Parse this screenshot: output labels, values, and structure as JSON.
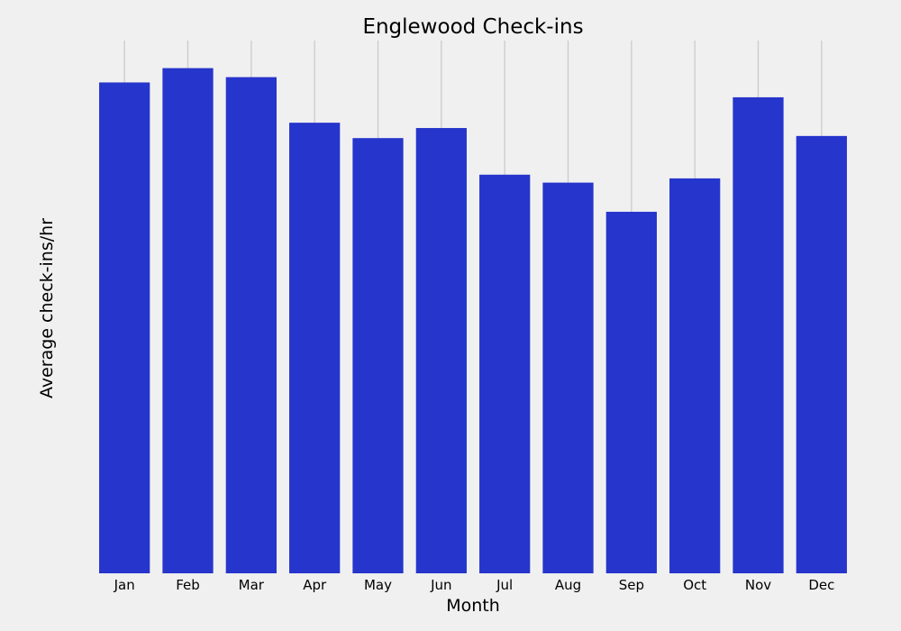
{
  "chart_data": {
    "type": "bar",
    "title": "Englewood Check-ins",
    "xlabel": "Month",
    "ylabel": "Average check-ins/hr",
    "categories": [
      "Jan",
      "Feb",
      "Mar",
      "Apr",
      "May",
      "Jun",
      "Jul",
      "Aug",
      "Sep",
      "Oct",
      "Nov",
      "Dec"
    ],
    "values": [
      9.26,
      9.53,
      9.36,
      8.5,
      8.21,
      8.4,
      7.52,
      7.37,
      6.82,
      7.45,
      8.98,
      8.25
    ],
    "ylim": [
      0,
      10.05
    ],
    "grid": {
      "x": true,
      "y": false
    },
    "y_tick_labels_shown": false,
    "bar_color": "#2635cb",
    "background_color": "#f0f0f0",
    "grid_color": "#cbcbcb"
  }
}
